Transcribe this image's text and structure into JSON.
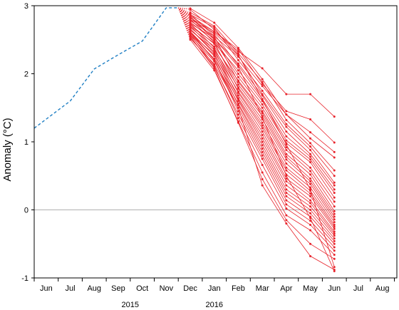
{
  "chart_data": {
    "type": "line",
    "title": "",
    "ylabel": "Anomaly (°C)",
    "xlabel": "",
    "ylim": [
      -1,
      3
    ],
    "yticks": [
      -1,
      0,
      1,
      2,
      3
    ],
    "x_months": [
      "Jun",
      "Jul",
      "Aug",
      "Sep",
      "Oct",
      "Nov",
      "Dec",
      "Jan",
      "Feb",
      "Mar",
      "Apr",
      "May",
      "Jun",
      "Jul",
      "Aug"
    ],
    "year_labels": [
      {
        "label": "2015",
        "month_index": 3.5
      },
      {
        "label": "2016",
        "month_index": 7
      }
    ],
    "zero_line": true,
    "colors": {
      "observed": "#1f7fc4",
      "forecast": "#e8242c",
      "zero": "#b0b0b0"
    },
    "observed": {
      "style": "dashed",
      "x": [
        -0.5,
        1,
        2,
        3,
        4,
        5,
        5.5
      ],
      "y": [
        1.2,
        1.6,
        2.07,
        2.28,
        2.48,
        2.97,
        2.97
      ]
    },
    "forecast": {
      "style": "solid",
      "bridge_from": {
        "x": 5.5,
        "y": 2.97
      },
      "x": [
        6,
        7,
        8,
        9,
        10,
        11,
        12
      ],
      "series": [
        {
          "values": [
            2.82,
            2.62,
            2.33,
            2.08,
            1.7,
            1.7,
            1.37
          ]
        },
        {
          "values": [
            2.85,
            2.62,
            2.36,
            1.85,
            1.45,
            1.33,
            0.99
          ]
        },
        {
          "values": [
            2.96,
            2.75,
            2.38,
            1.92,
            1.4,
            1.14,
            0.85
          ]
        },
        {
          "values": [
            2.78,
            2.55,
            2.25,
            1.82,
            1.4,
            1.05,
            0.77
          ]
        },
        {
          "values": [
            2.9,
            2.7,
            2.3,
            1.88,
            1.32,
            0.98,
            0.58
          ]
        },
        {
          "values": [
            2.87,
            2.68,
            2.2,
            1.75,
            1.26,
            0.93,
            0.5
          ]
        },
        {
          "values": [
            2.8,
            2.6,
            2.27,
            1.7,
            1.22,
            0.88,
            0.4
          ]
        },
        {
          "values": [
            2.74,
            2.52,
            2.15,
            1.68,
            1.15,
            0.82,
            0.36
          ]
        },
        {
          "values": [
            2.86,
            2.58,
            2.12,
            1.63,
            1.08,
            0.78,
            0.3
          ]
        },
        {
          "values": [
            2.7,
            2.45,
            2.05,
            1.6,
            1.02,
            0.74,
            0.25
          ]
        },
        {
          "values": [
            2.83,
            2.5,
            2.0,
            1.55,
            0.98,
            0.7,
            0.18
          ]
        },
        {
          "values": [
            2.76,
            2.48,
            1.95,
            1.5,
            0.92,
            0.62,
            0.12
          ]
        },
        {
          "values": [
            2.68,
            2.4,
            1.9,
            1.45,
            0.88,
            0.57,
            0.05
          ]
        },
        {
          "values": [
            2.88,
            2.55,
            1.88,
            1.42,
            0.82,
            0.52,
            -0.02
          ]
        },
        {
          "values": [
            2.72,
            2.44,
            1.84,
            1.38,
            0.78,
            0.46,
            -0.06
          ]
        },
        {
          "values": [
            2.64,
            2.36,
            1.8,
            1.33,
            0.74,
            0.42,
            -0.1
          ]
        },
        {
          "values": [
            2.8,
            2.46,
            1.78,
            1.28,
            0.68,
            0.38,
            -0.14
          ]
        },
        {
          "values": [
            2.66,
            2.32,
            1.74,
            1.24,
            0.62,
            0.33,
            -0.18
          ]
        },
        {
          "values": [
            2.74,
            2.38,
            1.72,
            1.2,
            0.58,
            0.28,
            -0.22
          ]
        },
        {
          "values": [
            2.6,
            2.28,
            1.68,
            1.15,
            0.52,
            0.24,
            -0.25
          ]
        },
        {
          "values": [
            2.7,
            2.35,
            1.64,
            1.1,
            0.46,
            0.2,
            -0.28
          ]
        },
        {
          "values": [
            2.58,
            2.22,
            1.62,
            1.05,
            0.42,
            0.14,
            -0.32
          ]
        },
        {
          "values": [
            2.66,
            2.3,
            1.6,
            1.0,
            0.36,
            0.1,
            -0.35
          ]
        },
        {
          "values": [
            2.56,
            2.18,
            1.56,
            0.95,
            0.3,
            0.05,
            -0.38
          ]
        },
        {
          "values": [
            2.62,
            2.26,
            1.54,
            0.9,
            0.25,
            0.0,
            -0.42
          ]
        },
        {
          "values": [
            2.52,
            2.14,
            1.5,
            0.85,
            0.2,
            -0.05,
            -0.46
          ]
        },
        {
          "values": [
            2.6,
            2.2,
            1.45,
            0.8,
            0.14,
            -0.1,
            -0.5
          ]
        },
        {
          "values": [
            2.54,
            2.1,
            1.4,
            0.75,
            0.08,
            -0.16,
            -0.55
          ]
        },
        {
          "values": [
            2.58,
            2.12,
            1.35,
            0.66,
            0.02,
            -0.22,
            -0.6
          ]
        },
        {
          "values": [
            2.5,
            2.05,
            1.3,
            0.55,
            -0.08,
            -0.3,
            -0.66
          ]
        },
        {
          "values": [
            2.55,
            2.08,
            1.28,
            0.45,
            -0.15,
            -0.5,
            -0.72
          ]
        },
        {
          "values": [
            2.62,
            2.2,
            1.5,
            0.36,
            -0.2,
            -0.68,
            -0.88
          ]
        },
        {
          "values": [
            2.94,
            2.65,
            2.28,
            1.62,
            0.96,
            0.3,
            -0.84
          ]
        },
        {
          "values": [
            2.84,
            2.52,
            2.1,
            1.36,
            0.5,
            -0.12,
            -0.9
          ]
        }
      ]
    }
  }
}
